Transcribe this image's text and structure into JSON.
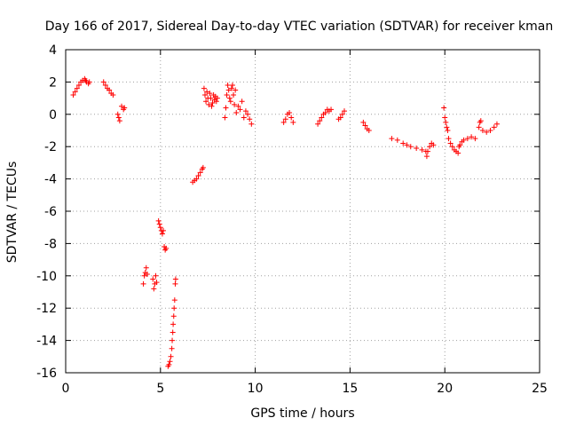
{
  "chart_data": {
    "type": "scatter",
    "title": "Day 166 of 2017, Sidereal Day-to-day VTEC variation (SDTVAR) for receiver kman",
    "xlabel": "GPS time / hours",
    "ylabel": "SDTVAR / TECUs",
    "xlim": [
      0,
      25
    ],
    "ylim": [
      -16,
      4
    ],
    "xticks": [
      0,
      5,
      10,
      15,
      20,
      25
    ],
    "yticks": [
      -16,
      -14,
      -12,
      -10,
      -8,
      -6,
      -4,
      -2,
      0,
      2,
      4
    ],
    "grid": true,
    "marker": "plus",
    "color": "#ff0000",
    "series": [
      {
        "name": "SDTVAR",
        "x": [
          0.4,
          0.5,
          0.6,
          0.7,
          0.8,
          0.9,
          1.0,
          1.05,
          1.1,
          1.2,
          1.25,
          2.0,
          2.1,
          2.2,
          2.3,
          2.4,
          2.5,
          2.75,
          2.8,
          2.85,
          2.95,
          3.05,
          3.1,
          4.1,
          4.15,
          4.2,
          4.25,
          4.3,
          4.6,
          4.65,
          4.7,
          4.75,
          4.8,
          4.9,
          4.95,
          5.0,
          5.05,
          5.1,
          5.15,
          5.2,
          5.25,
          5.3,
          5.4,
          5.45,
          5.5,
          5.55,
          5.6,
          5.62,
          5.65,
          5.67,
          5.7,
          5.72,
          5.75,
          5.78,
          5.8,
          6.7,
          6.8,
          6.9,
          7.0,
          7.1,
          7.2,
          7.25,
          7.3,
          7.35,
          7.4,
          7.45,
          7.5,
          7.55,
          7.6,
          7.65,
          7.7,
          7.75,
          7.8,
          7.85,
          7.9,
          7.95,
          8.0,
          8.4,
          8.45,
          8.5,
          8.55,
          8.6,
          8.65,
          8.7,
          8.75,
          8.8,
          8.85,
          8.9,
          8.95,
          9.0,
          9.1,
          9.2,
          9.3,
          9.4,
          9.5,
          9.6,
          9.7,
          9.8,
          11.5,
          11.6,
          11.7,
          11.8,
          11.9,
          12.0,
          13.3,
          13.4,
          13.5,
          13.6,
          13.7,
          13.8,
          13.9,
          14.0,
          14.4,
          14.5,
          14.6,
          14.7,
          15.7,
          15.8,
          15.9,
          16.0,
          17.2,
          17.5,
          17.8,
          18.0,
          18.2,
          18.5,
          18.8,
          19.0,
          19.05,
          19.1,
          19.2,
          19.3,
          19.4,
          19.95,
          20.0,
          20.05,
          20.1,
          20.15,
          20.2,
          20.3,
          20.4,
          20.5,
          20.6,
          20.7,
          20.75,
          20.8,
          20.9,
          21.0,
          21.2,
          21.4,
          21.6,
          21.8,
          21.85,
          21.9,
          22.0,
          22.2,
          22.4,
          22.6,
          22.75
        ],
        "y": [
          1.2,
          1.4,
          1.6,
          1.8,
          2.0,
          2.1,
          2.2,
          2.1,
          2.0,
          1.9,
          2.0,
          2.0,
          1.8,
          1.6,
          1.5,
          1.3,
          1.2,
          0.0,
          -0.2,
          -0.4,
          0.5,
          0.3,
          0.4,
          -10.5,
          -10.0,
          -9.8,
          -9.5,
          -9.9,
          -10.2,
          -10.8,
          -10.5,
          -10.0,
          -10.4,
          -6.6,
          -6.8,
          -7.0,
          -7.2,
          -7.4,
          -7.2,
          -8.2,
          -8.4,
          -8.3,
          -15.6,
          -15.5,
          -15.3,
          -15.0,
          -14.5,
          -14.0,
          -13.5,
          -13.0,
          -12.5,
          -12.0,
          -11.5,
          -10.5,
          -10.2,
          -4.2,
          -4.1,
          -4.0,
          -3.8,
          -3.6,
          -3.4,
          -3.3,
          1.6,
          1.2,
          0.8,
          1.4,
          1.0,
          0.6,
          1.3,
          1.0,
          0.5,
          0.7,
          1.2,
          0.9,
          1.1,
          0.8,
          1.0,
          -0.2,
          0.4,
          1.2,
          1.8,
          1.5,
          1.0,
          0.8,
          1.6,
          1.8,
          1.2,
          0.6,
          1.5,
          0.1,
          0.5,
          0.3,
          0.8,
          -0.2,
          0.2,
          0.0,
          -0.3,
          -0.6,
          -0.5,
          -0.3,
          0.0,
          0.1,
          -0.2,
          -0.5,
          -0.6,
          -0.4,
          -0.2,
          0.0,
          0.1,
          0.3,
          0.2,
          0.3,
          -0.3,
          -0.2,
          0.0,
          0.2,
          -0.5,
          -0.7,
          -0.9,
          -1.0,
          -1.5,
          -1.6,
          -1.8,
          -1.9,
          -2.0,
          -2.1,
          -2.2,
          -2.3,
          -2.6,
          -2.3,
          -2.0,
          -1.8,
          -1.9,
          0.4,
          -0.2,
          -0.5,
          -0.8,
          -1.0,
          -1.5,
          -1.8,
          -2.0,
          -2.2,
          -2.3,
          -2.4,
          -2.0,
          -1.9,
          -1.7,
          -1.6,
          -1.5,
          -1.4,
          -1.5,
          -0.8,
          -0.5,
          -0.4,
          -1.0,
          -1.1,
          -1.0,
          -0.8,
          -0.6
        ]
      }
    ]
  }
}
